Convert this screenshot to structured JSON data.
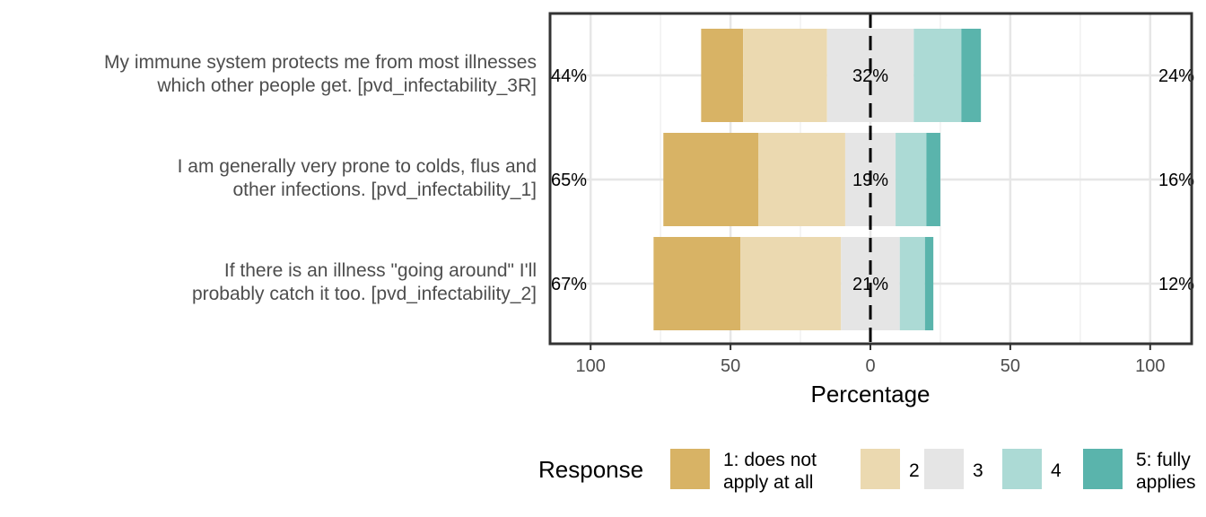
{
  "chart_data": {
    "type": "bar",
    "orientation": "horizontal",
    "diverging": true,
    "xlabel": "Percentage",
    "xlim": [
      -100,
      100
    ],
    "xticks": [
      -100,
      -50,
      0,
      50,
      100
    ],
    "xtick_labels": [
      "100",
      "50",
      "0",
      "50",
      "100"
    ],
    "grid": true,
    "legend_position": "bottom",
    "legend_title": "Response",
    "categories": [
      "My immune system protects me from most illnesses which other people get. [pvd_infectability_3R]",
      "I am generally very prone to colds, flus and other infections. [pvd_infectability_1]",
      "If there is an illness \"going around\" I'll probably catch it too. [pvd_infectability_2]"
    ],
    "category_lines": [
      [
        "My immune system protects me from most illnesses",
        "which other people get. [pvd_infectability_3R]"
      ],
      [
        "I am generally very prone to colds, flus and",
        "other infections. [pvd_infectability_1]"
      ],
      [
        "If there is an illness \"going around\" I'll",
        "probably catch it too. [pvd_infectability_2]"
      ]
    ],
    "series": [
      {
        "name": "1: does not apply at all",
        "legend_lines": [
          "1: does not",
          "apply at all"
        ],
        "color": "#D8B365",
        "values": [
          15,
          34,
          31
        ]
      },
      {
        "name": "2",
        "legend_lines": [
          "2"
        ],
        "color": "#EBD9B0",
        "values": [
          30,
          31,
          36
        ]
      },
      {
        "name": "3",
        "legend_lines": [
          "3"
        ],
        "color": "#E5E5E5",
        "values": [
          31,
          18,
          21
        ]
      },
      {
        "name": "4",
        "legend_lines": [
          "4"
        ],
        "color": "#ACDAD5",
        "values": [
          17,
          11,
          9
        ]
      },
      {
        "name": "5: fully applies",
        "legend_lines": [
          "5: fully",
          "applies"
        ],
        "color": "#5AB4AC",
        "values": [
          7,
          5,
          3
        ]
      }
    ],
    "left_labels": [
      "44%",
      "65%",
      "67%"
    ],
    "center_labels": [
      "32%",
      "19%",
      "21%"
    ],
    "right_labels": [
      "24%",
      "16%",
      "12%"
    ]
  }
}
